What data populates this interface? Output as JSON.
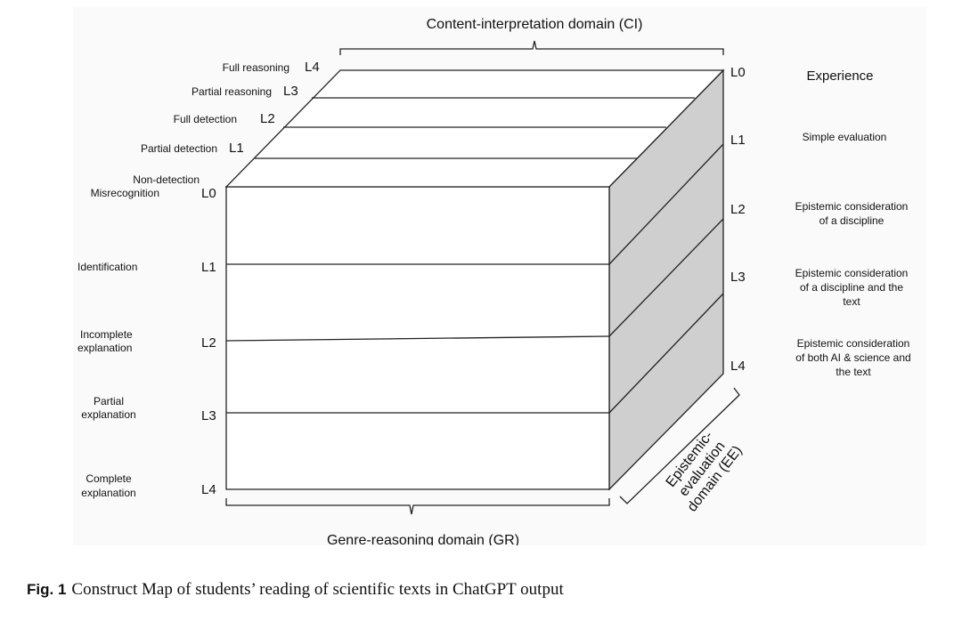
{
  "domains": {
    "ci": "Content-interpretation domain (CI)",
    "gr": "Genre-reasoning domain (GR)",
    "ee": [
      "Epistemic-",
      "evaluation",
      "domain (EE)"
    ]
  },
  "ci_levels": [
    {
      "code": "L4",
      "label": "Full reasoning"
    },
    {
      "code": "L3",
      "label": "Partial reasoning"
    },
    {
      "code": "L2",
      "label": "Full detection"
    },
    {
      "code": "L1",
      "label": "Partial detection"
    },
    {
      "code": "L0",
      "label_lines": [
        "Non-detection",
        "Misrecognition"
      ]
    }
  ],
  "gr_levels": [
    {
      "code": "L1",
      "label_lines": [
        "Identification"
      ]
    },
    {
      "code": "L2",
      "label_lines": [
        "Incomplete",
        "explanation"
      ]
    },
    {
      "code": "L3",
      "label_lines": [
        "Partial",
        "explanation"
      ]
    },
    {
      "code": "L4",
      "label_lines": [
        "Complete",
        "explanation"
      ]
    }
  ],
  "ee_levels": [
    {
      "code": "L0",
      "label_lines": [
        "Experience"
      ]
    },
    {
      "code": "L1",
      "label_lines": [
        "Simple evaluation"
      ]
    },
    {
      "code": "L2",
      "label_lines": [
        "Epistemic consideration",
        "of a discipline"
      ]
    },
    {
      "code": "L3",
      "label_lines": [
        "Epistemic consideration",
        "of a discipline and the",
        "text"
      ]
    },
    {
      "code": "L4",
      "label_lines": [
        "Epistemic consideration",
        "of both AI & science and",
        "the text"
      ]
    }
  ],
  "caption": {
    "number": "Fig. 1",
    "text": "Construct Map of students’ reading of scientific texts in ChatGPT output"
  },
  "colors": {
    "side_face": "#cfcfcf",
    "lines": "#222222"
  }
}
